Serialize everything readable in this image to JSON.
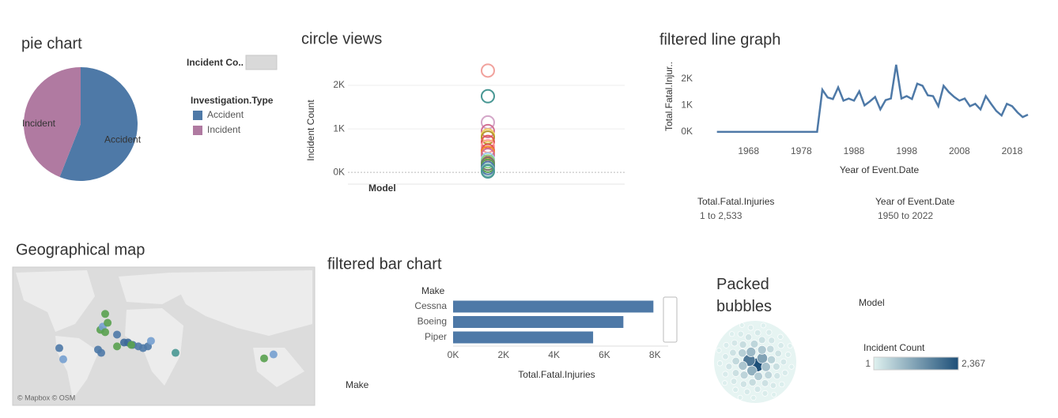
{
  "chart_data": [
    {
      "type": "pie",
      "title": "pie chart",
      "legend_title": "Investigation.Type",
      "size_legend_title": "Incident Co..",
      "categories": [
        "Accident",
        "Incident"
      ],
      "values": [
        56,
        44
      ],
      "colors": [
        "#4e79a7",
        "#b07aa1"
      ]
    },
    {
      "type": "circle",
      "title": "circle views",
      "x_label": "Model",
      "y_label": "Incident Count",
      "values": [
        2340,
        1750,
        1150,
        950,
        850,
        800,
        700,
        600,
        500,
        450,
        400,
        300,
        250,
        200,
        150,
        100,
        50,
        20
      ],
      "colors": [
        "#f1a29d",
        "#499894",
        "#d4a6c8",
        "#d37295",
        "#f1ce63",
        "#b6992d",
        "#e15759",
        "#ff9d9a",
        "#e15759",
        "#f28e2b",
        "#d37295",
        "#a0cbe8",
        "#8cd17d",
        "#79706e",
        "#59a14f",
        "#4e79a7",
        "#86bcb6",
        "#499894"
      ],
      "ylim": [
        -270,
        2600
      ],
      "yticks": [
        {
          "value": 0,
          "label": "0K"
        },
        {
          "value": 1000,
          "label": "1K"
        },
        {
          "value": 2000,
          "label": "2K"
        }
      ]
    },
    {
      "type": "line",
      "title": "filtered line graph",
      "x_label": "Year of Event.Date",
      "y_label": "Total.Fatal.Injur..",
      "color": "#4e79a7",
      "x": [
        1962,
        1981,
        1982,
        1983,
        1984,
        1985,
        1986,
        1987,
        1988,
        1989,
        1990,
        1991,
        1992,
        1993,
        1994,
        1995,
        1996,
        1997,
        1998,
        1999,
        2000,
        2001,
        2002,
        2003,
        2004,
        2005,
        2006,
        2007,
        2008,
        2009,
        2010,
        2011,
        2012,
        2013,
        2014,
        2015,
        2016,
        2017,
        2018,
        2019,
        2020,
        2021
      ],
      "values": [
        1,
        1,
        1590,
        1300,
        1240,
        1680,
        1180,
        1260,
        1180,
        1530,
        1000,
        1150,
        1320,
        850,
        1200,
        1260,
        2533,
        1260,
        1350,
        1240,
        1820,
        1740,
        1380,
        1350,
        970,
        1740,
        1500,
        1320,
        1180,
        1260,
        970,
        1060,
        850,
        1350,
        1060,
        790,
        620,
        1060,
        970,
        740,
        560,
        650
      ],
      "xlim": [
        1958,
        2024
      ],
      "xticks": [
        1968,
        1978,
        1988,
        1998,
        2008,
        2018
      ],
      "ylim": [
        -150,
        2650
      ],
      "yticks": [
        {
          "value": 0,
          "label": "0K"
        },
        {
          "value": 1000,
          "label": "1K"
        },
        {
          "value": 2000,
          "label": "2K"
        }
      ],
      "filters": [
        {
          "name": "Total.Fatal.Injuries",
          "range": "1 to 2,533"
        },
        {
          "name": "Year of Event.Date",
          "range": "1950 to 2022"
        }
      ]
    },
    {
      "type": "map",
      "title": "Geographical map",
      "attribution": "© Mapbox © OSM",
      "xlim": [
        -120,
        163
      ],
      "ylim": [
        -54,
        75
      ],
      "x": [
        -33.3,
        -37.8,
        -35.6,
        -33.3,
        -22.2,
        -31,
        -76.3,
        -72.6,
        -40,
        -37,
        -22.2,
        -15.6,
        -11.9,
        -7.4,
        -2.2,
        2.2,
        6.7,
        9.6,
        32.6,
        115.6,
        124.4,
        -8.9
      ],
      "y": [
        31.3,
        16.5,
        19.4,
        14.3,
        12,
        23,
        -0.6,
        -11,
        -2,
        -5,
        1,
        4.6,
        4.6,
        2.4,
        1,
        -0.6,
        1,
        6.1,
        -5,
        -10.2,
        -6.5,
        2.4
      ],
      "colors": [
        "#59a14f",
        "#59a14f",
        "#76a0d0",
        "#59a14f",
        "#4e79a7",
        "#59a14f",
        "#4e79a7",
        "#76a0d0",
        "#4e79a7",
        "#4e79a7",
        "#59a14f",
        "#3d6a99",
        "#3d6a99",
        "#4e79a7",
        "#4e79a7",
        "#4e79a7",
        "#4e79a7",
        "#76a0d0",
        "#499894",
        "#59a14f",
        "#76a0d0",
        "#59a14f"
      ]
    },
    {
      "type": "hbar",
      "title": "filtered bar chart",
      "y_label": "Make",
      "x_label": "Total.Fatal.Injuries",
      "footer_label": "Make",
      "color": "#4e79a7",
      "categories": [
        "Cessna",
        "Boeing",
        "Piper"
      ],
      "values": [
        7940,
        6750,
        5550
      ],
      "xlim": [
        0,
        8400
      ],
      "xticks": [
        {
          "value": 0,
          "label": "0K"
        },
        {
          "value": 2000,
          "label": "2K"
        },
        {
          "value": 4000,
          "label": "4K"
        },
        {
          "value": 6000,
          "label": "6K"
        },
        {
          "value": 8000,
          "label": "8K"
        }
      ]
    },
    {
      "type": "bubble",
      "title": "Packed bubbles",
      "legend_title": "Model",
      "color_legend_title": "Incident Count",
      "colorscale": [
        "#dff1ef",
        "#1d4f78"
      ],
      "color_ticks": [
        1,
        {
          "value": 2367,
          "label": "2,367"
        }
      ],
      "values": [
        2367,
        1750,
        1150,
        950,
        820,
        700,
        640,
        600,
        540,
        500,
        460,
        420,
        400,
        380,
        350,
        330,
        310,
        290,
        270,
        250,
        240,
        230,
        220,
        210,
        200,
        190,
        180,
        170,
        160,
        150,
        140,
        130,
        125,
        120,
        115,
        110,
        105,
        100,
        95,
        90,
        85,
        80,
        75,
        70,
        65,
        60,
        55,
        50,
        45,
        40,
        35,
        30,
        28,
        26,
        24,
        22,
        20,
        18,
        16,
        14
      ]
    }
  ]
}
